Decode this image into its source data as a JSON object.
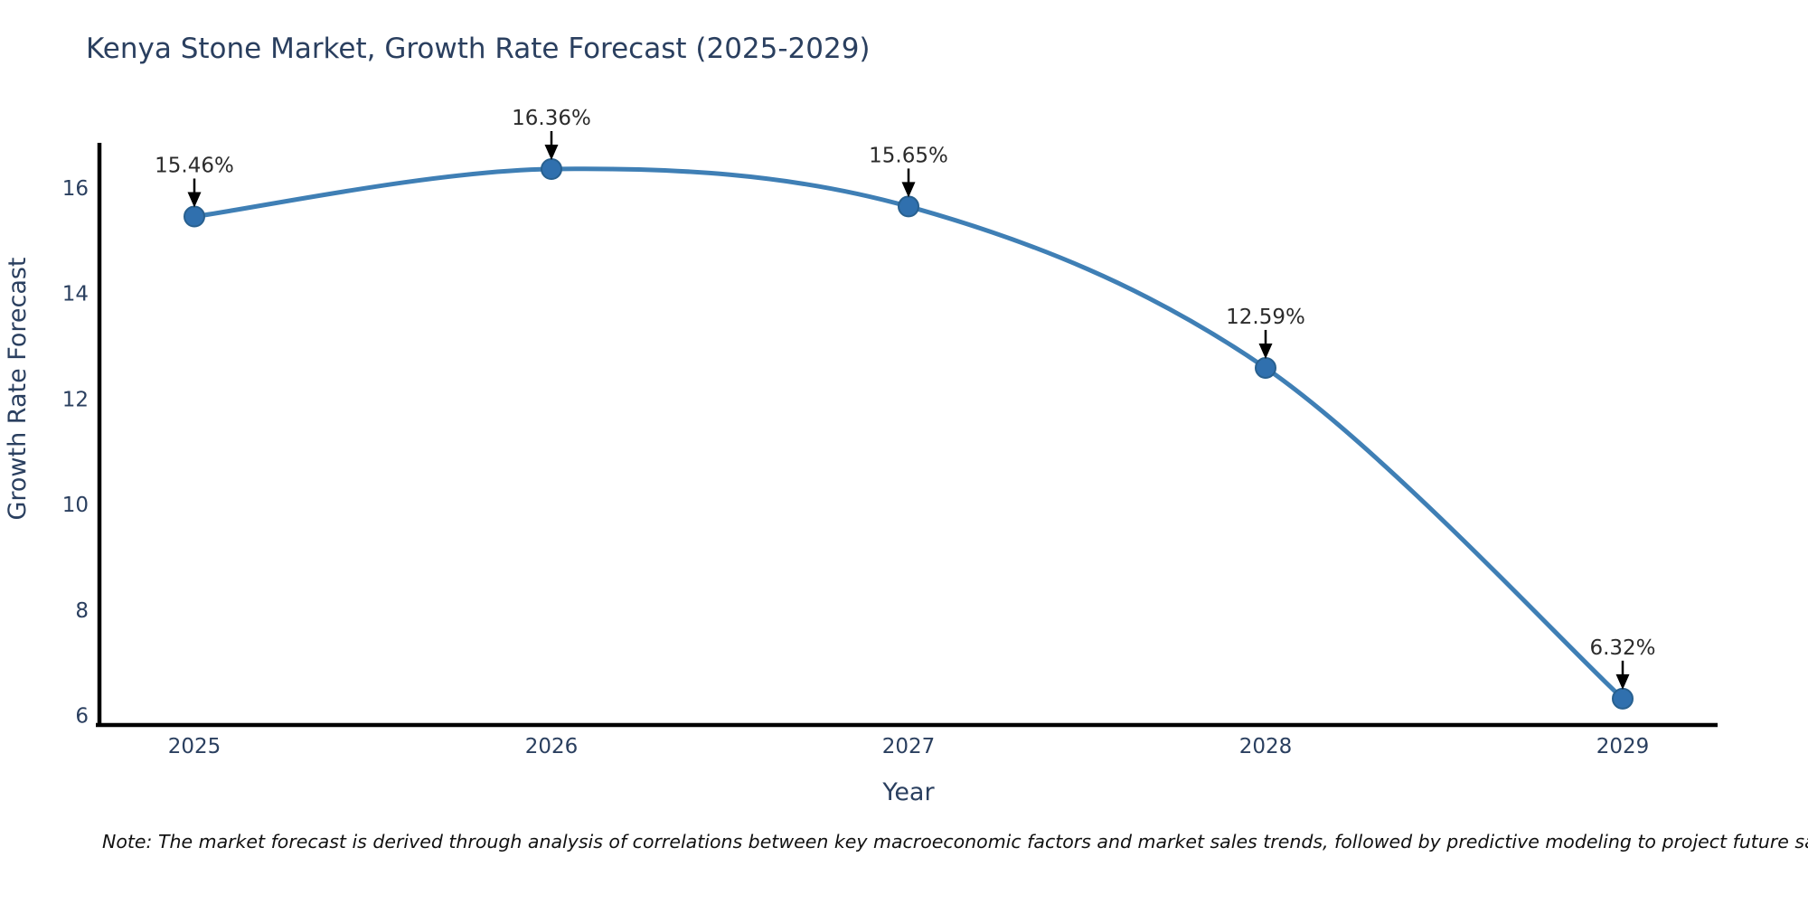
{
  "chart_data": {
    "type": "line",
    "title": "Kenya Stone Market, Growth Rate Forecast (2025-2029)",
    "xlabel": "Year",
    "ylabel": "Growth Rate Forecast",
    "categories": [
      "2025",
      "2026",
      "2027",
      "2028",
      "2029"
    ],
    "series": [
      {
        "name": "Growth Rate Forecast",
        "values": [
          15.46,
          16.36,
          15.65,
          12.59,
          6.32
        ],
        "point_labels": [
          "15.46%",
          "16.36%",
          "15.65%",
          "12.59%",
          "6.32%"
        ]
      }
    ],
    "y_ticks": [
      16,
      14,
      12,
      10,
      8,
      6
    ],
    "ylim": [
      5.8,
      16.9
    ],
    "grid": false,
    "legend": false,
    "line_style": "smooth-spline",
    "annotations": "value labels with black down-arrows above each point",
    "colors": {
      "line": "#3f7fb5",
      "marker_fill": "#3070ae",
      "marker_stroke": "#28608f",
      "axis_line": "#000000",
      "text": "#2a3f5f",
      "annotation_text": "#2b2b2b",
      "arrow": "#000000",
      "background": "#ffffff"
    }
  },
  "note": "Note: The market forecast is derived through analysis of correlations between key macroeconomic factors and market sales trends, followed by predictive modeling to project future sales."
}
